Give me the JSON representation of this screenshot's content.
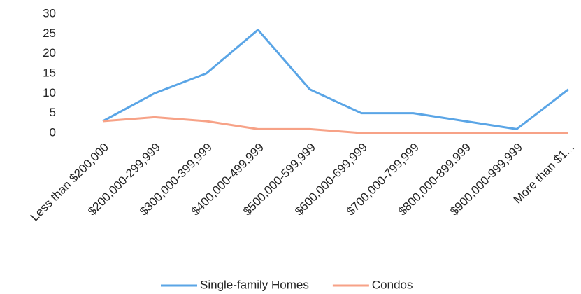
{
  "chart_data": {
    "type": "line",
    "categories": [
      "Less than $200,000",
      "$200,000-299,999",
      "$300,000-399,999",
      "$400,000-499,999",
      "$500,000-599,999",
      "$600,000-699,999",
      "$700,000-799,999",
      "$800,000-899,999",
      "$900,000-999,999",
      "More than $1..."
    ],
    "series": [
      {
        "name": "Single-family Homes",
        "color": "#5aa5e6",
        "values": [
          3,
          10,
          15,
          26,
          11,
          5,
          5,
          3,
          1,
          11
        ]
      },
      {
        "name": "Condos",
        "color": "#f7a287",
        "values": [
          3,
          4,
          3,
          1,
          1,
          0,
          0,
          0,
          0,
          0
        ]
      }
    ],
    "ylim": [
      0,
      30
    ],
    "yticks": [
      0,
      5,
      10,
      15,
      20,
      25,
      30
    ],
    "grid": false,
    "legend": "bottom"
  }
}
